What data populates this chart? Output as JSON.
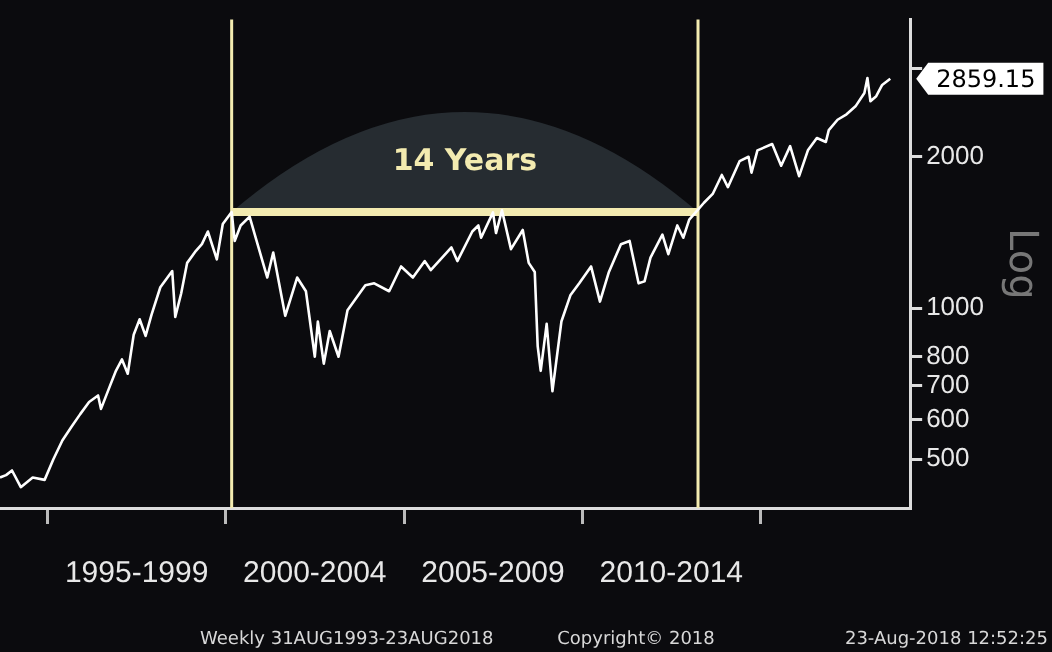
{
  "chart_data": {
    "type": "line",
    "ylabel": "Log",
    "log": true,
    "legend": false,
    "grid": false,
    "marker": "none",
    "xlim": [
      "1993-08-31",
      "2019-03-15"
    ],
    "xticks": [
      {
        "value": "1995-01-01",
        "label": null
      },
      {
        "value": "1997-07-01",
        "label": "1995-1999"
      },
      {
        "value": "2000-01-01",
        "label": null
      },
      {
        "value": "2002-07-01",
        "label": "2000-2004"
      },
      {
        "value": "2005-01-01",
        "label": null
      },
      {
        "value": "2007-07-01",
        "label": "2005-2009"
      },
      {
        "value": "2010-01-01",
        "label": null
      },
      {
        "value": "2012-07-01",
        "label": "2010-2014"
      },
      {
        "value": "2015-01-01",
        "label": null
      }
    ],
    "ylim": [
      400,
      3750
    ],
    "yticks": [
      500,
      600,
      700,
      800,
      1000,
      2000,
      {
        "value": 3000,
        "label": null
      }
    ],
    "series": [
      {
        "color": "#ffffff",
        "x": [
          "1993-08-31",
          "1993-11",
          "1994-01",
          "1994-04",
          "1994-08",
          "1994-12",
          "1995-03",
          "1995-06",
          "1995-09",
          "1995-12",
          "1996-03",
          "1996-06",
          "1996-07",
          "1996-10",
          "1996-12",
          "1997-02",
          "1997-04",
          "1997-06",
          "1997-08",
          "1997-10",
          "1997-12",
          "1998-03",
          "1998-07",
          "1998-08",
          "1998-10",
          "1998-12",
          "1999-03",
          "1999-05",
          "1999-07",
          "1999-10",
          "1999-12",
          "2000-03",
          "2000-04",
          "2000-06",
          "2000-09",
          "2000-12",
          "2001-03",
          "2001-05",
          "2001-09",
          "2002-01",
          "2002-04",
          "2002-07",
          "2002-08",
          "2002-10",
          "2002-12",
          "2003-03",
          "2003-06",
          "2003-12",
          "2004-03",
          "2004-08",
          "2004-12",
          "2005-04",
          "2005-08",
          "2005-10",
          "2006-05",
          "2006-07",
          "2006-12",
          "2007-02",
          "2007-03",
          "2007-07",
          "2007-08",
          "2007-10",
          "2008-01",
          "2008-05",
          "2008-07",
          "2008-09",
          "2008-10",
          "2008-11",
          "2009-01",
          "2009-03",
          "2009-06",
          "2009-09",
          "2009-12",
          "2010-04",
          "2010-07",
          "2010-10",
          "2011-02",
          "2011-05",
          "2011-08",
          "2011-10",
          "2011-12",
          "2012-04",
          "2012-06",
          "2012-09",
          "2012-11",
          "2013-01",
          "2013-04",
          "2013-06",
          "2013-09",
          "2013-12",
          "2014-02",
          "2014-06",
          "2014-09",
          "2014-10",
          "2014-12",
          "2015-05",
          "2015-08",
          "2015-11",
          "2016-02",
          "2016-05",
          "2016-08",
          "2016-11",
          "2016-12",
          "2017-03",
          "2017-06",
          "2017-09",
          "2017-12",
          "2018-01",
          "2018-02",
          "2018-04",
          "2018-06",
          "2018-08-23"
        ],
        "values": [
          460,
          465,
          475,
          440,
          460,
          455,
          500,
          545,
          580,
          615,
          650,
          670,
          630,
          700,
          750,
          790,
          740,
          885,
          950,
          880,
          970,
          1100,
          1185,
          960,
          1070,
          1230,
          1300,
          1340,
          1420,
          1250,
          1470,
          1553,
          1360,
          1460,
          1520,
          1320,
          1150,
          1290,
          965,
          1150,
          1080,
          800,
          940,
          775,
          900,
          800,
          990,
          1110,
          1120,
          1080,
          1210,
          1150,
          1240,
          1190,
          1320,
          1240,
          1420,
          1460,
          1380,
          1550,
          1410,
          1565,
          1310,
          1430,
          1230,
          1180,
          840,
          750,
          930,
          683,
          940,
          1060,
          1120,
          1210,
          1030,
          1180,
          1340,
          1360,
          1120,
          1130,
          1260,
          1400,
          1280,
          1460,
          1380,
          1500,
          1570,
          1620,
          1690,
          1840,
          1740,
          1960,
          2000,
          1860,
          2060,
          2120,
          1920,
          2100,
          1830,
          2060,
          2180,
          2140,
          2260,
          2370,
          2430,
          2520,
          2680,
          2870,
          2580,
          2640,
          2780,
          2859.15
        ],
        "value_labels": [
          null,
          null,
          null,
          null,
          null,
          null,
          null,
          null,
          null,
          null,
          null,
          null,
          null,
          null,
          null,
          null,
          null,
          null,
          null,
          null,
          null,
          null,
          null,
          null,
          null,
          null,
          null,
          null,
          null,
          null,
          null,
          null,
          null,
          null,
          null,
          null,
          null,
          null,
          null,
          null,
          null,
          null,
          null,
          null,
          null,
          null,
          null,
          null,
          null,
          null,
          null,
          null,
          null,
          null,
          null,
          null,
          null,
          null,
          null,
          null,
          null,
          null,
          null,
          null,
          null,
          null,
          null,
          null,
          null,
          null,
          null,
          null,
          null,
          null,
          null,
          null,
          null,
          null,
          null,
          null,
          null,
          null,
          null,
          null,
          null,
          null,
          null,
          null,
          null,
          null,
          null,
          null,
          null,
          null,
          null,
          null,
          null,
          null,
          null,
          null,
          null,
          null,
          null,
          null,
          null,
          null,
          null,
          null,
          null,
          null,
          null,
          "2859.15"
        ]
      },
      {
        "type": "line",
        "color": "#f3ebb0",
        "x": [
          "2000-03",
          "2013-04"
        ],
        "values": [
          1553,
          1553
        ]
      }
    ],
    "ref_lines": [
      {
        "axis": "x",
        "value": "2000-03",
        "color": "#f3ebb0"
      },
      {
        "axis": "x",
        "value": "2013-04",
        "color": "#f3ebb0"
      }
    ],
    "annotations": [
      "14 Years",
      "Weekly 31AUG1993-23AUG2018",
      "Copyright© 2018",
      "23-Aug-2018 12:52:25"
    ]
  }
}
